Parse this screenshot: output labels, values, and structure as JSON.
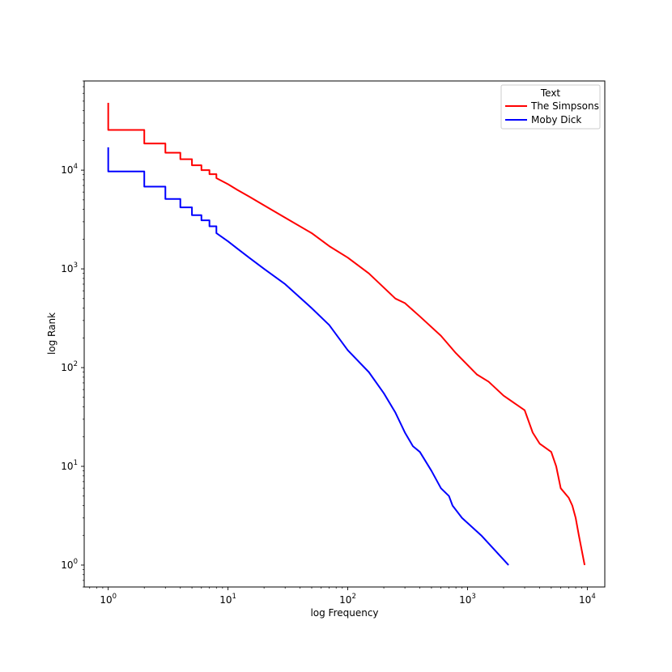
{
  "chart_data": {
    "type": "line",
    "xlabel": "log Frequency",
    "ylabel": "log Rank",
    "xscale": "log",
    "yscale": "log",
    "xlim": [
      0.63,
      14000
    ],
    "ylim": [
      0.6,
      80000
    ],
    "grid": false,
    "legend": {
      "title": "Text",
      "position": "upper-right"
    },
    "x_ticks": [
      {
        "value": 1,
        "base": "10",
        "exp": "0"
      },
      {
        "value": 10,
        "base": "10",
        "exp": "1"
      },
      {
        "value": 100,
        "base": "10",
        "exp": "2"
      },
      {
        "value": 1000,
        "base": "10",
        "exp": "3"
      },
      {
        "value": 10000,
        "base": "10",
        "exp": "4"
      }
    ],
    "y_ticks": [
      {
        "value": 1,
        "base": "10",
        "exp": "0"
      },
      {
        "value": 10,
        "base": "10",
        "exp": "1"
      },
      {
        "value": 100,
        "base": "10",
        "exp": "2"
      },
      {
        "value": 1000,
        "base": "10",
        "exp": "3"
      },
      {
        "value": 10000,
        "base": "10",
        "exp": "4"
      }
    ],
    "series": [
      {
        "name": "The Simpsons",
        "color": "#ff0000",
        "points": [
          [
            1,
            48000
          ],
          [
            1,
            25500
          ],
          [
            2,
            25500
          ],
          [
            2,
            18600
          ],
          [
            3,
            18600
          ],
          [
            3,
            15000
          ],
          [
            4,
            15000
          ],
          [
            4,
            12900
          ],
          [
            5,
            12900
          ],
          [
            5,
            11200
          ],
          [
            6,
            11200
          ],
          [
            6,
            10000
          ],
          [
            7,
            10000
          ],
          [
            7,
            9100
          ],
          [
            8,
            9100
          ],
          [
            8,
            8300
          ],
          [
            10,
            7200
          ],
          [
            12,
            6300
          ],
          [
            15,
            5400
          ],
          [
            20,
            4400
          ],
          [
            30,
            3300
          ],
          [
            50,
            2300
          ],
          [
            70,
            1700
          ],
          [
            100,
            1300
          ],
          [
            150,
            900
          ],
          [
            250,
            500
          ],
          [
            300,
            450
          ],
          [
            400,
            330
          ],
          [
            600,
            210
          ],
          [
            800,
            140
          ],
          [
            1200,
            85
          ],
          [
            1500,
            72
          ],
          [
            2000,
            52
          ],
          [
            3000,
            37
          ],
          [
            3500,
            22
          ],
          [
            4000,
            17
          ],
          [
            5000,
            14
          ],
          [
            5500,
            10
          ],
          [
            6000,
            6
          ],
          [
            7000,
            4.8
          ],
          [
            7500,
            4
          ],
          [
            8000,
            3
          ],
          [
            8500,
            2
          ],
          [
            9500,
            1
          ]
        ]
      },
      {
        "name": "Moby Dick",
        "color": "#0000ff",
        "points": [
          [
            1,
            17000
          ],
          [
            1,
            9700
          ],
          [
            2,
            9700
          ],
          [
            2,
            6800
          ],
          [
            3,
            6800
          ],
          [
            3,
            5100
          ],
          [
            4,
            5100
          ],
          [
            4,
            4200
          ],
          [
            5,
            4200
          ],
          [
            5,
            3500
          ],
          [
            6,
            3500
          ],
          [
            6,
            3100
          ],
          [
            7,
            3100
          ],
          [
            7,
            2700
          ],
          [
            8,
            2700
          ],
          [
            8,
            2300
          ],
          [
            10,
            1900
          ],
          [
            12,
            1600
          ],
          [
            15,
            1300
          ],
          [
            20,
            1000
          ],
          [
            30,
            700
          ],
          [
            50,
            400
          ],
          [
            70,
            270
          ],
          [
            100,
            150
          ],
          [
            150,
            90
          ],
          [
            200,
            55
          ],
          [
            250,
            35
          ],
          [
            300,
            22
          ],
          [
            350,
            16
          ],
          [
            400,
            14
          ],
          [
            500,
            9
          ],
          [
            600,
            6
          ],
          [
            700,
            5
          ],
          [
            750,
            4
          ],
          [
            900,
            3
          ],
          [
            1300,
            2
          ],
          [
            2200,
            1
          ]
        ]
      }
    ]
  }
}
